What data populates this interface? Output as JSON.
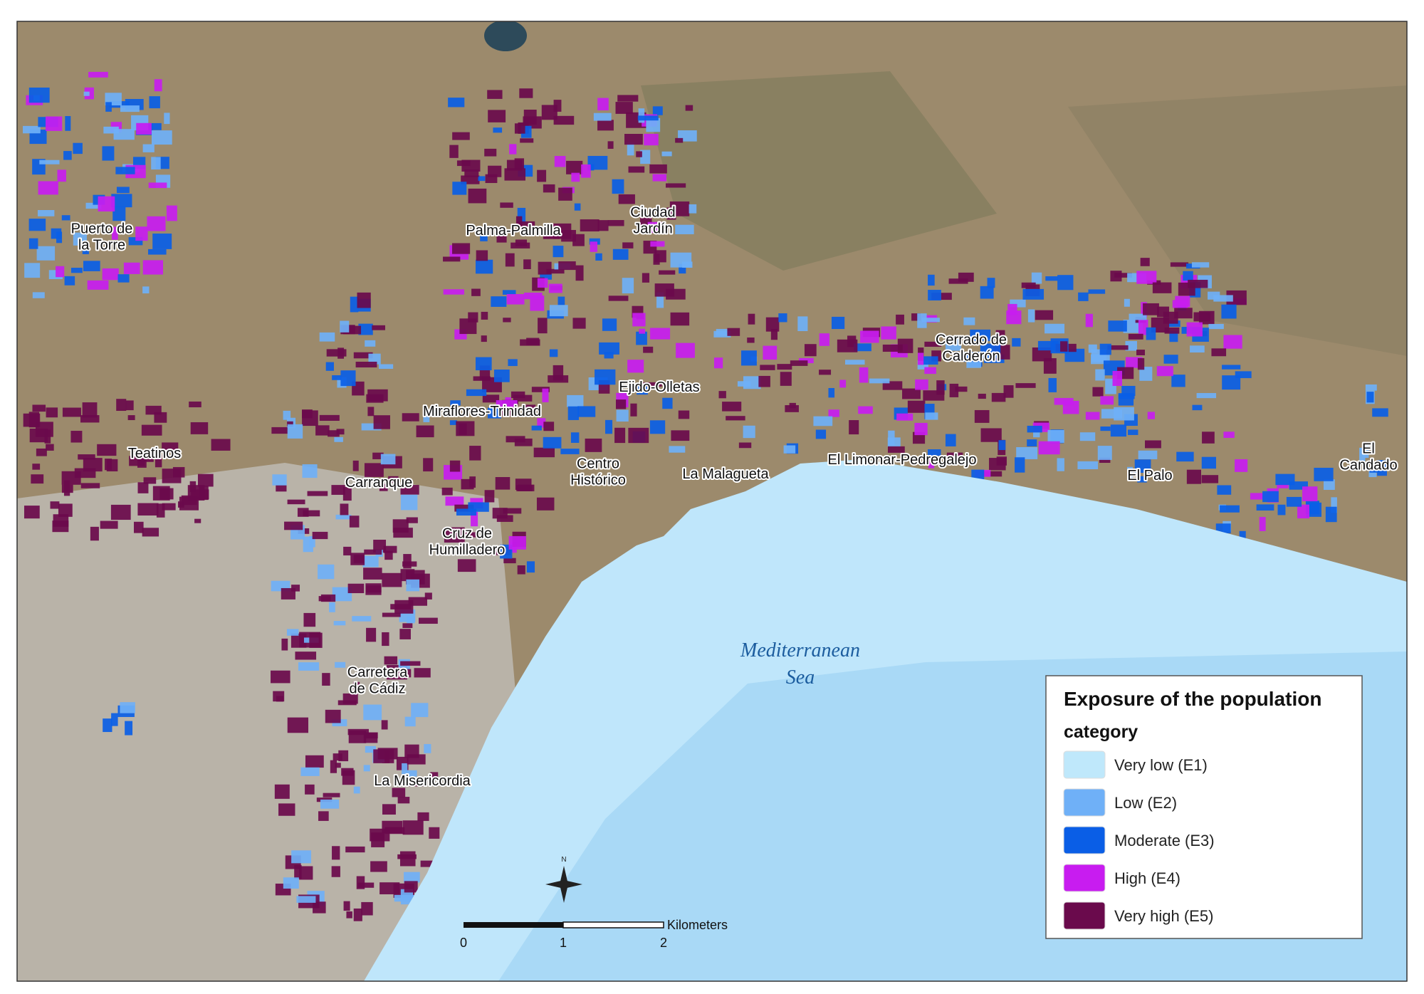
{
  "legend": {
    "title": "Exposure of the population",
    "subtitle": "category",
    "items": [
      {
        "label": "Very low (E1)",
        "color": "#bfe8fb"
      },
      {
        "label": "Low (E2)",
        "color": "#6fb0f7"
      },
      {
        "label": "Moderate (E3)",
        "color": "#0a5ee6"
      },
      {
        "label": "High (E4)",
        "color": "#c81cf0"
      },
      {
        "label": "Very high (E5)",
        "color": "#6a0a4c"
      }
    ]
  },
  "places": [
    {
      "lines": [
        "Puerto de",
        "la Torre"
      ]
    },
    {
      "lines": [
        "Palma-Palmilla"
      ]
    },
    {
      "lines": [
        "Ciudad",
        "Jardín"
      ]
    },
    {
      "lines": [
        "Miraflores-Trinidad"
      ]
    },
    {
      "lines": [
        "Teatinos"
      ]
    },
    {
      "lines": [
        "Carranque"
      ]
    },
    {
      "lines": [
        "Centro",
        "Histórico"
      ]
    },
    {
      "lines": [
        "Cruz de",
        "Humilladero"
      ]
    },
    {
      "lines": [
        "Ejido-Olletas"
      ]
    },
    {
      "lines": [
        "La Malagueta"
      ]
    },
    {
      "lines": [
        "El Limonar-Pedregalejo"
      ]
    },
    {
      "lines": [
        "Cerrado de",
        "Calderón"
      ]
    },
    {
      "lines": [
        "El Palo"
      ]
    },
    {
      "lines": [
        "El",
        "Candado"
      ]
    },
    {
      "lines": [
        "Carretera",
        "de Cádiz"
      ]
    },
    {
      "lines": [
        "La Misericordia"
      ]
    }
  ],
  "sea": {
    "lines": [
      "Mediterranean",
      "Sea"
    ]
  },
  "scale_bar": {
    "labels": [
      "0",
      "1",
      "2"
    ],
    "unit": "Kilometers"
  },
  "north": "N"
}
